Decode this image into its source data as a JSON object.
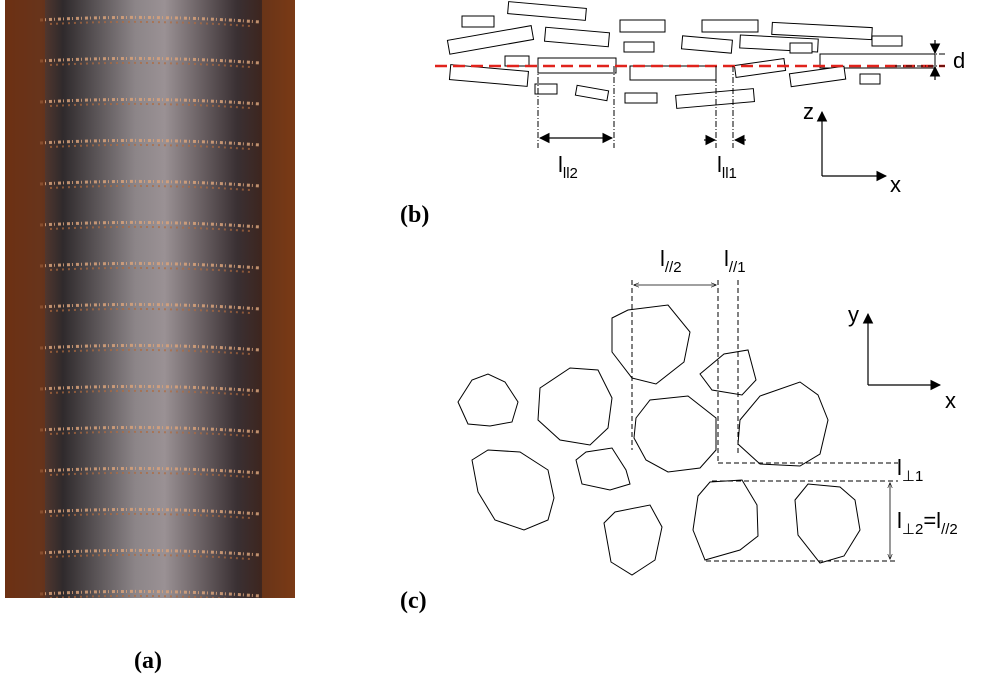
{
  "panel_a": {
    "label": "(a)"
  },
  "panel_b": {
    "label": "(b)",
    "d": "d",
    "axis_z": "z",
    "axis_x": "x",
    "l_par2": {
      "symbol": "l",
      "subscript": "ll2"
    },
    "l_par1": {
      "symbol": "l",
      "subscript": "ll1"
    }
  },
  "panel_c": {
    "label": "(c)",
    "axis_y": "y",
    "axis_x": "x",
    "l_par2": {
      "symbol": "l",
      "subscript": "//2"
    },
    "l_par1": {
      "symbol": "l",
      "subscript": "//1"
    },
    "l_perp1": {
      "symbol": "l",
      "subscript": "⊥1"
    },
    "l_perp2": {
      "symbol": "l",
      "subscript": "⊥2",
      "equals": "=",
      "rhs_symbol": "l",
      "rhs_subscript": "//2"
    }
  }
}
